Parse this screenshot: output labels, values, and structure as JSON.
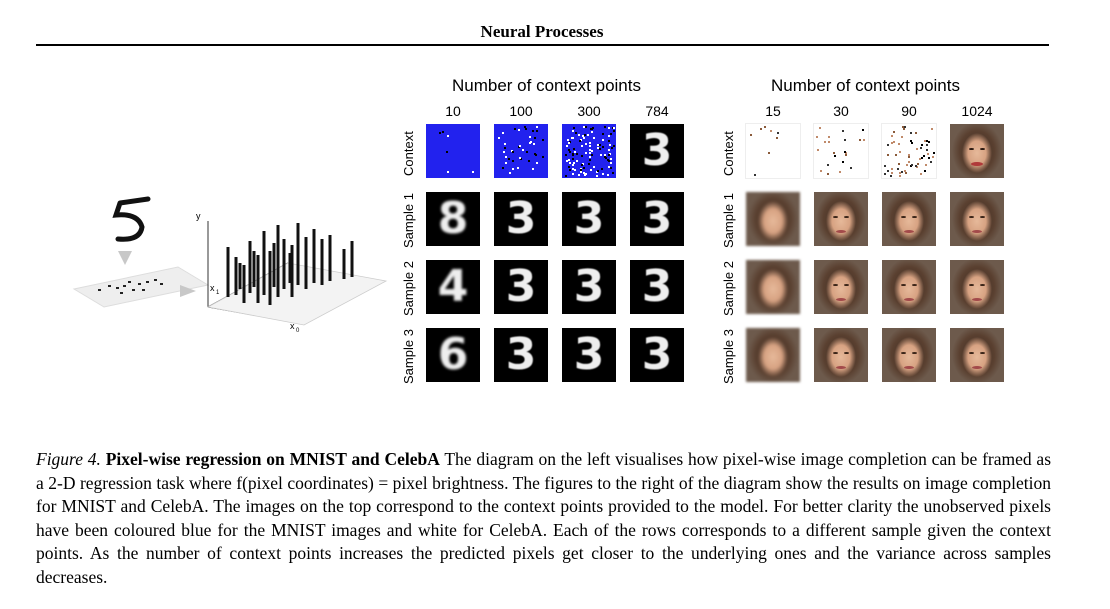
{
  "header": {
    "title": "Neural Processes"
  },
  "diagram": {
    "axis_y": "y",
    "axis_x1": "x",
    "axis_x1_sub": "1",
    "axis_x0": "x",
    "axis_x0_sub": "0"
  },
  "mnist": {
    "title": "Number of context points",
    "columns": [
      "10",
      "100",
      "300",
      "784"
    ],
    "rows": [
      "Context",
      "Sample 1",
      "Sample 2",
      "Sample 3"
    ],
    "context_color": "#2222ee",
    "digits": [
      [
        "",
        "",
        "",
        "3"
      ],
      [
        "8",
        "3",
        "3",
        "3"
      ],
      [
        "4",
        "3",
        "3",
        "3"
      ],
      [
        "6",
        "3",
        "3",
        "3"
      ]
    ]
  },
  "celeba": {
    "title": "Number of context points",
    "columns": [
      "15",
      "30",
      "90",
      "1024"
    ],
    "rows": [
      "Context",
      "Sample 1",
      "Sample 2",
      "Sample 3"
    ],
    "context_color": "#ffffff"
  },
  "caption": {
    "figure_label": "Figure 4.",
    "lead": "Pixel-wise regression on MNIST and CelebA",
    "body": " The diagram on the left visualises how pixel-wise image completion can be framed as a 2-D regression task where f(pixel coordinates) = pixel brightness. The figures to the right of the diagram show the results on image completion for MNIST and CelebA. The images on the top correspond to the context points provided to the model. For better clarity the unobserved pixels have been coloured blue for the MNIST images and white for CelebA. Each of the rows corresponds to a different sample given the context points. As the number of context points increases the predicted pixels get closer to the underlying ones and the variance across samples decreases."
  }
}
